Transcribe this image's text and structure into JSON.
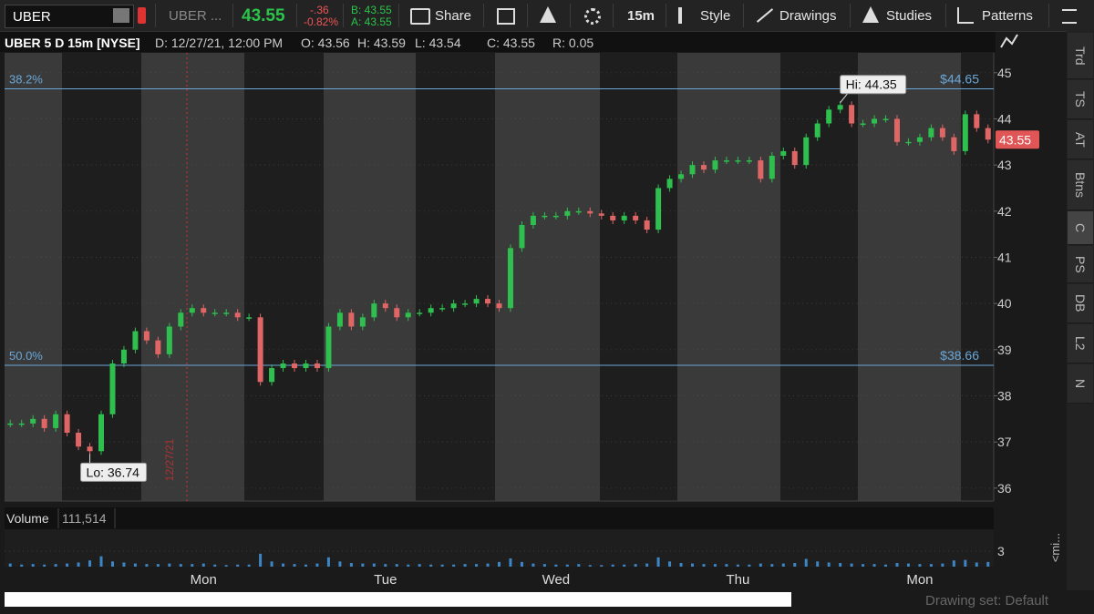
{
  "toolbar": {
    "symbol": "UBER",
    "symbol_short": "UBER ...",
    "last": "43.55",
    "change": "-.36",
    "change_pct": "-0.82%",
    "bid": "B: 43.55",
    "ask": "A: 43.55",
    "buttons": [
      "Share",
      "15m",
      "Style",
      "Drawings",
      "Studies",
      "Patterns"
    ]
  },
  "info": {
    "title": "UBER 5 D 15m [NYSE]",
    "fields": [
      "D: 12/27/21, 12:00 PM",
      "O: 43.56",
      "H: 43.59",
      "L: 43.54",
      "C: 43.55",
      "R: 0.05"
    ]
  },
  "chart_data": [
    {
      "type": "candlestick",
      "date_marker": "12/27/21",
      "categories": [
        null,
        null,
        null,
        null,
        null,
        null,
        null,
        null,
        null,
        null,
        null,
        null,
        null,
        null,
        null,
        null,
        null,
        "Mon",
        null,
        null,
        null,
        null,
        null,
        null,
        null,
        null,
        null,
        null,
        null,
        null,
        null,
        null,
        null,
        "Tue",
        null,
        null,
        null,
        null,
        null,
        null,
        null,
        null,
        null,
        null,
        null,
        null,
        null,
        null,
        "Wed",
        null,
        null,
        null,
        null,
        null,
        null,
        null,
        null,
        null,
        null,
        null,
        null,
        null,
        null,
        null,
        "Thu",
        null,
        null,
        null,
        null,
        null,
        null,
        null,
        null,
        null,
        null,
        null,
        null,
        null,
        null,
        null,
        "Mon",
        null,
        null,
        null,
        null,
        null,
        null
      ],
      "values": [
        37.4,
        37.4,
        37.5,
        37.3,
        37.6,
        37.2,
        36.9,
        36.8,
        37.6,
        38.7,
        39.0,
        39.4,
        39.2,
        38.9,
        39.5,
        39.8,
        39.9,
        39.8,
        39.8,
        39.8,
        39.7,
        39.7,
        38.3,
        38.6,
        38.7,
        38.6,
        38.7,
        38.6,
        39.5,
        39.8,
        39.5,
        39.7,
        40.0,
        39.9,
        39.7,
        39.8,
        39.8,
        39.9,
        39.9,
        40.0,
        40.0,
        40.1,
        40.0,
        39.9,
        41.2,
        41.7,
        41.9,
        41.9,
        41.9,
        42.0,
        42.0,
        41.95,
        41.9,
        41.8,
        41.9,
        41.8,
        41.6,
        42.5,
        42.7,
        42.8,
        43.0,
        42.9,
        43.1,
        43.1,
        43.1,
        43.1,
        42.7,
        43.2,
        43.3,
        43.0,
        43.6,
        43.9,
        44.2,
        44.3,
        43.9,
        43.9,
        44.0,
        44.0,
        43.5,
        43.5,
        43.6,
        43.8,
        43.6,
        43.3,
        44.1,
        43.8,
        43.55
      ],
      "ylim": [
        35.72,
        45.43
      ],
      "yticks": [
        36,
        37,
        38,
        39,
        40,
        41,
        42,
        43,
        44,
        45
      ],
      "levels": [
        {
          "label": "38.2%",
          "value": 44.65,
          "value_label": "$44.65"
        },
        {
          "label": "50.0%",
          "value": 38.66,
          "value_label": "$38.66"
        }
      ],
      "annotations": [
        {
          "text": "Hi: 44.35",
          "value": 44.35
        },
        {
          "text": "Lo: 36.74",
          "value": 36.74
        }
      ],
      "last_price": {
        "value": 43.55,
        "label": "43.55"
      }
    },
    {
      "type": "bar",
      "title": "Volume",
      "current": "111,514",
      "color": "#3d86c6",
      "values": [
        0.6,
        0.4,
        0.5,
        0.4,
        0.5,
        0.6,
        0.8,
        1.2,
        2.0,
        1.0,
        0.8,
        0.6,
        0.5,
        0.5,
        0.6,
        0.5,
        0.5,
        0.6,
        0.4,
        0.3,
        0.4,
        0.4,
        2.5,
        1.0,
        0.6,
        0.5,
        0.4,
        0.6,
        1.8,
        1.0,
        0.7,
        0.6,
        0.6,
        0.5,
        0.5,
        0.4,
        0.5,
        0.4,
        0.4,
        0.4,
        0.5,
        0.5,
        0.6,
        0.9,
        1.6,
        0.9,
        0.6,
        0.5,
        0.4,
        0.4,
        0.5,
        0.3,
        0.3,
        0.4,
        0.4,
        0.5,
        0.6,
        1.8,
        1.0,
        0.7,
        0.6,
        0.5,
        0.5,
        0.5,
        0.4,
        0.4,
        0.6,
        0.5,
        0.6,
        0.7,
        1.5,
        1.0,
        0.8,
        0.7,
        0.6,
        0.5,
        0.5,
        0.4,
        0.7,
        0.6,
        0.5,
        0.5,
        0.6,
        1.2,
        1.3,
        0.8,
        0.9
      ],
      "ylim": [
        0,
        7.06
      ],
      "yticks": [
        3
      ]
    }
  ],
  "sidebar": [
    "Trd",
    "TS",
    "AT",
    "Btns",
    "C",
    "PS",
    "DB",
    "L2",
    "N"
  ],
  "footer": {
    "drawing_set": "Drawing set: Default",
    "mini": "<mi..."
  }
}
